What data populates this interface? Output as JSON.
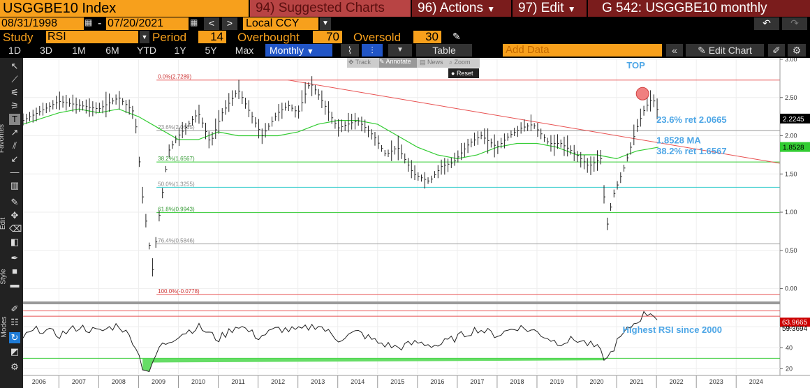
{
  "header": {
    "security": "USGGBE10 Index",
    "suggested": "94) Suggested Charts",
    "actions": "96) Actions",
    "edit": "97) Edit",
    "chart_title": "G 542: USGGBE10 monthly"
  },
  "dates": {
    "start": "08/31/1998",
    "dash": "-",
    "end": "07/20/2021",
    "currency": "Local CCY"
  },
  "study": {
    "label": "Study",
    "value": "RSI",
    "period_label": "Period",
    "period": "14",
    "overbought_label": "Overbought",
    "overbought": "70",
    "oversold_label": "Oversold",
    "oversold": "30"
  },
  "ranges": [
    "1D",
    "3D",
    "1M",
    "6M",
    "YTD",
    "1Y",
    "5Y",
    "Max"
  ],
  "frequency": "Monthly",
  "table_label": "Table",
  "add_data": "Add Data",
  "edit_chart": "Edit Chart",
  "mini_toolbar": [
    "Track",
    "Annotate",
    "News",
    "Zoom"
  ],
  "reset_label": "Reset",
  "side_labels": {
    "favorites": "Favorites",
    "edit": "Edit",
    "style": "Style",
    "modes": "Modes"
  },
  "colors": {
    "orange": "#f7a01c",
    "red_line": "#e85050",
    "green": "#33cc33",
    "cyan": "#33cccc",
    "annotation": "#4da6e6"
  },
  "chart_data": [
    {
      "type": "line",
      "series": "USGGBE10 monthly bars",
      "x_range": [
        2005.6,
        2024.6
      ],
      "ylim": [
        -0.15,
        3.0
      ],
      "y_ticks": [
        "3.00",
        "2.50",
        "2.00",
        "1.50",
        "1.00",
        "0.50",
        "0.00"
      ],
      "x_ticks": [
        "2006",
        "2007",
        "2008",
        "2009",
        "2010",
        "2011",
        "2012",
        "2013",
        "2014",
        "2015",
        "2016",
        "2017",
        "2018",
        "2019",
        "2020",
        "2021",
        "2022",
        "2023",
        "2024"
      ],
      "x": [
        2005.6,
        2006.5,
        2007.0,
        2007.5,
        2008.0,
        2008.4,
        2008.6,
        2008.85,
        2009.0,
        2009.25,
        2009.5,
        2010.0,
        2010.3,
        2010.6,
        2011.0,
        2011.3,
        2011.6,
        2012.0,
        2012.25,
        2012.5,
        2012.8,
        2013.0,
        2013.5,
        2014.0,
        2014.4,
        2014.7,
        2015.0,
        2015.4,
        2015.8,
        2016.1,
        2016.4,
        2016.8,
        2017.1,
        2017.5,
        2017.8,
        2018.1,
        2018.4,
        2018.8,
        2019.1,
        2019.5,
        2019.8,
        2020.1,
        2020.25,
        2020.4,
        2020.7,
        2021.0,
        2021.2,
        2021.4,
        2021.55
      ],
      "y": [
        2.2,
        2.45,
        2.4,
        2.35,
        2.5,
        2.3,
        1.2,
        0.25,
        0.9,
        1.8,
        2.0,
        2.3,
        1.9,
        2.3,
        2.6,
        2.3,
        2.0,
        2.3,
        2.4,
        2.3,
        2.7,
        2.55,
        2.1,
        2.2,
        2.0,
        1.75,
        1.85,
        1.5,
        1.4,
        1.6,
        1.65,
        1.9,
        2.0,
        1.85,
        2.0,
        2.1,
        2.15,
        1.9,
        1.9,
        1.75,
        1.6,
        1.7,
        0.8,
        1.2,
        1.6,
        2.1,
        2.35,
        2.5,
        2.3
      ],
      "last_price": "2.2245",
      "moving_average": {
        "label": "1.8528",
        "x": [
          2005.6,
          2006.5,
          2007.0,
          2007.5,
          2008.0,
          2008.5,
          2009.0,
          2009.5,
          2010.0,
          2010.5,
          2011.0,
          2011.5,
          2012.0,
          2012.5,
          2013.0,
          2013.5,
          2014.0,
          2014.5,
          2015.0,
          2015.5,
          2016.0,
          2016.5,
          2017.0,
          2017.5,
          2018.0,
          2018.5,
          2019.0,
          2019.5,
          2020.0,
          2020.5,
          2021.0,
          2021.55
        ],
        "y": [
          2.15,
          2.3,
          2.35,
          2.3,
          2.35,
          2.25,
          2.1,
          1.95,
          1.95,
          2.05,
          2.0,
          2.0,
          2.0,
          2.05,
          2.15,
          2.2,
          2.2,
          2.15,
          2.0,
          1.85,
          1.75,
          1.7,
          1.75,
          1.85,
          1.9,
          1.9,
          1.85,
          1.75,
          1.75,
          1.7,
          1.8,
          1.85
        ]
      },
      "trendline": {
        "from": [
          2012.25,
          2.7289
        ],
        "to": [
          2024.6,
          1.64
        ]
      },
      "fib_levels": [
        {
          "label": "0.0%(2.7289)",
          "value": 2.7289,
          "color": "#e85050"
        },
        {
          "label": "23.6%(2.0665)",
          "value": 2.0665,
          "color": "#999999"
        },
        {
          "label": "38.2%(1.6567)",
          "value": 1.6567,
          "color": "#33cc33"
        },
        {
          "label": "50.0%(1.3255)",
          "value": 1.3255,
          "color": "#33cccc"
        },
        {
          "label": "61.8%(0.9943)",
          "value": 0.9943,
          "color": "#33cc33"
        },
        {
          "label": "76.4%(0.5846)",
          "value": 0.5846,
          "color": "#999999"
        },
        {
          "label": "100.0%(-0.0778)",
          "value": -0.0778,
          "color": "#e85050"
        }
      ],
      "annotations": [
        "TOP",
        "23.6% ret 2.0665",
        "1.8528 MA",
        "38.2% ret 1.6567"
      ],
      "ma_badge": "1.8528"
    },
    {
      "type": "line",
      "series": "RSI (14)",
      "ylim": [
        15,
        80
      ],
      "y_ticks": [
        "60",
        "40",
        "20"
      ],
      "x": [
        2005.6,
        2006.0,
        2006.5,
        2007.0,
        2007.5,
        2008.0,
        2008.4,
        2008.6,
        2008.8,
        2009.0,
        2009.5,
        2010.0,
        2010.5,
        2011.0,
        2011.5,
        2012.0,
        2012.5,
        2013.0,
        2013.5,
        2014.0,
        2014.5,
        2015.0,
        2015.5,
        2016.0,
        2016.5,
        2017.0,
        2017.5,
        2018.0,
        2018.5,
        2019.0,
        2019.5,
        2020.0,
        2020.25,
        2020.5,
        2020.8,
        2021.0,
        2021.2,
        2021.4,
        2021.55
      ],
      "y": [
        50,
        58,
        52,
        60,
        55,
        62,
        45,
        22,
        17,
        40,
        52,
        60,
        48,
        62,
        50,
        58,
        56,
        62,
        48,
        55,
        45,
        40,
        45,
        42,
        50,
        58,
        52,
        60,
        55,
        45,
        48,
        40,
        28,
        45,
        58,
        65,
        72,
        74,
        66
      ],
      "overbought": 70,
      "oversold": 30,
      "badges": [
        "63.9665",
        "59.3694"
      ],
      "annotation": "Highest RSI since 2000"
    }
  ]
}
